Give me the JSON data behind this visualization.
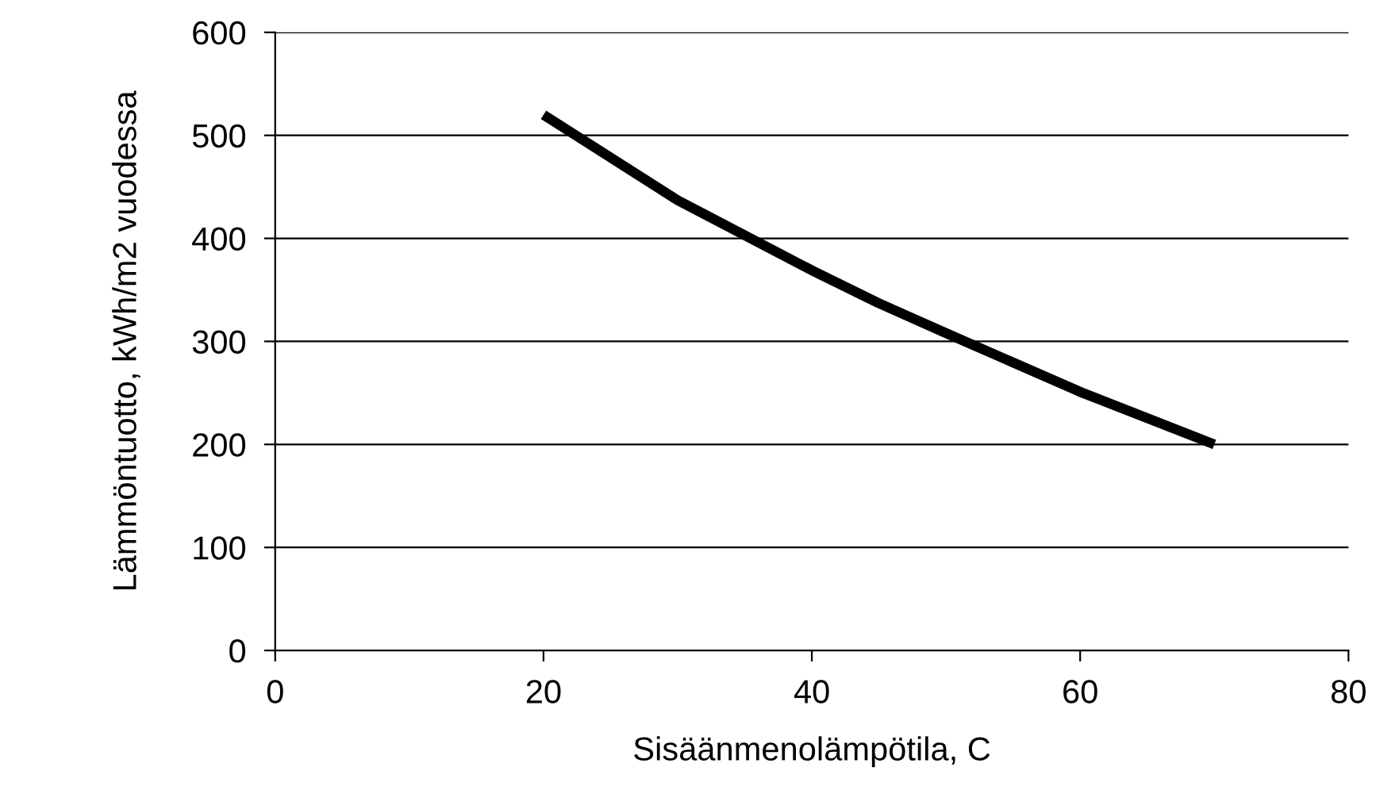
{
  "chart_data": {
    "type": "line",
    "xlabel": "Sisäänmenolämpötila, C",
    "ylabel": "Lämmöntuotto, kWh/m2 vuodessa",
    "x": [
      20,
      30,
      40,
      45,
      50,
      60,
      70
    ],
    "series": [
      {
        "color": "#000000",
        "values": [
          520,
          437,
          369,
          337,
          308,
          251,
          200
        ]
      }
    ],
    "xlim": [
      0,
      80
    ],
    "xticks": [
      0,
      20,
      40,
      60,
      80
    ],
    "ylim": [
      0,
      600
    ],
    "yticks": [
      0,
      100,
      200,
      300,
      400,
      500,
      600
    ],
    "grid": "y",
    "marker": "none",
    "line_style": "solid"
  }
}
